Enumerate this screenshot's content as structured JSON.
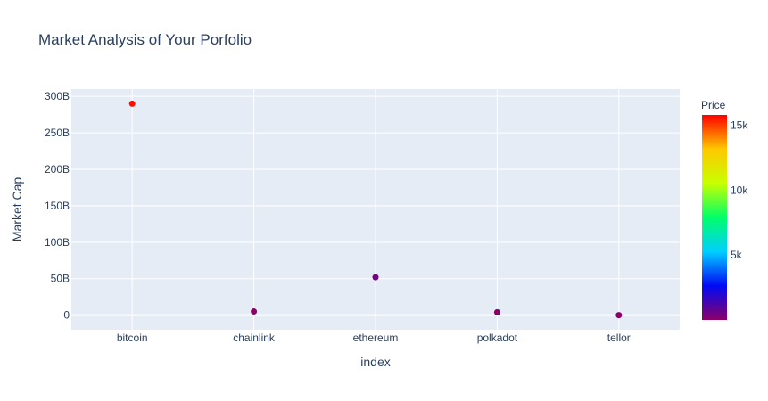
{
  "chart_data": {
    "type": "scatter",
    "title": "Market Analysis of Your Porfolio",
    "xlabel": "index",
    "ylabel": "Market Cap",
    "categories": [
      "bitcoin",
      "chainlink",
      "ethereum",
      "polkadot",
      "tellor"
    ],
    "market_cap": [
      290000000000,
      5000000000,
      52000000000,
      4000000000,
      0
    ],
    "price": [
      15600,
      11,
      460,
      4,
      20
    ],
    "ylim": [
      -20000000000,
      310000000000
    ],
    "y_ticks": [
      {
        "value": 300000000000,
        "label": "300B"
      },
      {
        "value": 250000000000,
        "label": "250B"
      },
      {
        "value": 200000000000,
        "label": "200B"
      },
      {
        "value": 150000000000,
        "label": "150B"
      },
      {
        "value": 100000000000,
        "label": "100B"
      },
      {
        "value": 50000000000,
        "label": "50B"
      },
      {
        "value": 0,
        "label": "0"
      }
    ],
    "colorbar": {
      "title": "Price",
      "range": [
        0,
        15800
      ],
      "colorscale": [
        "#8b0068",
        "#000af5",
        "#00cfff",
        "#00ff6a",
        "#c8ff00",
        "#ffc800",
        "#ff0000"
      ],
      "ticks": [
        {
          "value": 15000,
          "label": "15k"
        },
        {
          "value": 10000,
          "label": "10k"
        },
        {
          "value": 5000,
          "label": "5k"
        }
      ]
    },
    "grid": true,
    "plot_bg": "#e5ecf6"
  }
}
